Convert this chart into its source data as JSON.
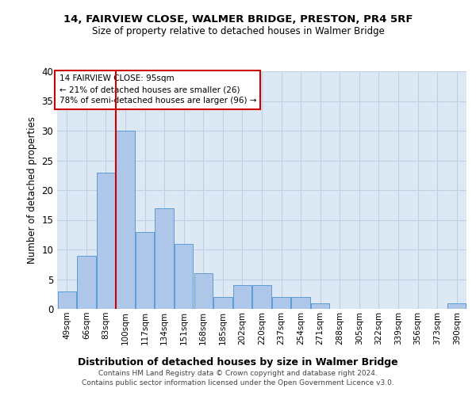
{
  "title1": "14, FAIRVIEW CLOSE, WALMER BRIDGE, PRESTON, PR4 5RF",
  "title2": "Size of property relative to detached houses in Walmer Bridge",
  "xlabel": "Distribution of detached houses by size in Walmer Bridge",
  "ylabel": "Number of detached properties",
  "annotation_line1": "14 FAIRVIEW CLOSE: 95sqm",
  "annotation_line2": "← 21% of detached houses are smaller (26)",
  "annotation_line3": "78% of semi-detached houses are larger (96) →",
  "categories": [
    "49sqm",
    "66sqm",
    "83sqm",
    "100sqm",
    "117sqm",
    "134sqm",
    "151sqm",
    "168sqm",
    "185sqm",
    "202sqm",
    "220sqm",
    "237sqm",
    "254sqm",
    "271sqm",
    "288sqm",
    "305sqm",
    "322sqm",
    "339sqm",
    "356sqm",
    "373sqm",
    "390sqm"
  ],
  "values": [
    3,
    9,
    23,
    30,
    13,
    17,
    11,
    6,
    2,
    4,
    4,
    2,
    2,
    1,
    0,
    0,
    0,
    0,
    0,
    0,
    1
  ],
  "bar_color": "#aec6e8",
  "bar_edge_color": "#5b9bd5",
  "vline_x_index": 3,
  "vline_color": "#cc0000",
  "ylim": [
    0,
    40
  ],
  "yticks": [
    0,
    5,
    10,
    15,
    20,
    25,
    30,
    35,
    40
  ],
  "grid_color": "#c0d0e4",
  "bg_color": "#dce8f4",
  "annotation_box_color": "#cc0000",
  "footer1": "Contains HM Land Registry data © Crown copyright and database right 2024.",
  "footer2": "Contains public sector information licensed under the Open Government Licence v3.0."
}
